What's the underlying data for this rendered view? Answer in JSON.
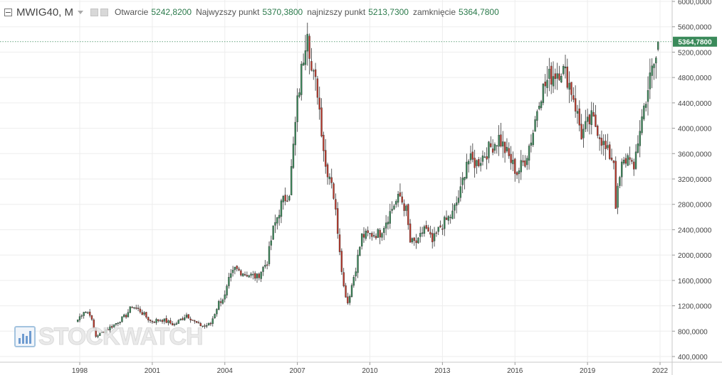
{
  "header": {
    "symbol": "MWIG40, M",
    "open_label": "Otwarcie",
    "open_value": "5242,8200",
    "high_label": "Najwyzszy punkt",
    "high_value": "5370,3800",
    "low_label": "najnizszy punkt",
    "low_value": "5213,7300",
    "close_label": "zamknięcie",
    "close_value": "5364,7800"
  },
  "watermark": "STOCKWATCH",
  "colors": {
    "up": "#3a8a5a",
    "down": "#c0392b",
    "wick": "#333333",
    "grid": "#ededed",
    "last_price": "#3a8a5a"
  },
  "chart_data": {
    "type": "candlestick",
    "interval": "monthly",
    "title": "",
    "xlabel": "",
    "ylabel": "",
    "x_ticks": [
      "1998",
      "2001",
      "2004",
      "2007",
      "2010",
      "2013",
      "2016",
      "2019",
      "2022"
    ],
    "y_ticks": [
      "400,0000",
      "800,0000",
      "1200,0000",
      "1600,0000",
      "2000,0000",
      "2400,0000",
      "2800,0000",
      "3200,0000",
      "3600,0000",
      "4000,0000",
      "4400,0000",
      "4800,0000",
      "5200,0000",
      "5600,0000",
      "6000,0000"
    ],
    "ylim": [
      400,
      6000
    ],
    "last_price": 5364.78,
    "last_price_label": "5364,7800",
    "grid": true,
    "anchors": [
      [
        "1997-12",
        980
      ],
      [
        "1998-03",
        1120
      ],
      [
        "1998-06",
        1080
      ],
      [
        "1998-09",
        720
      ],
      [
        "1998-12",
        780
      ],
      [
        "1999-06",
        900
      ],
      [
        "1999-12",
        1050
      ],
      [
        "2000-03",
        1200
      ],
      [
        "2000-07",
        1120
      ],
      [
        "2000-12",
        960
      ],
      [
        "2001-06",
        980
      ],
      [
        "2001-12",
        900
      ],
      [
        "2002-06",
        1060
      ],
      [
        "2002-12",
        900
      ],
      [
        "2003-03",
        880
      ],
      [
        "2003-06",
        920
      ],
      [
        "2003-10",
        1250
      ],
      [
        "2004-01",
        1350
      ],
      [
        "2004-03",
        1600
      ],
      [
        "2004-06",
        1780
      ],
      [
        "2004-12",
        1700
      ],
      [
        "2005-05",
        1650
      ],
      [
        "2005-10",
        1900
      ],
      [
        "2006-01",
        2400
      ],
      [
        "2006-05",
        2800
      ],
      [
        "2006-09",
        3000
      ],
      [
        "2007-01",
        4400
      ],
      [
        "2007-06",
        5650
      ],
      [
        "2007-08",
        4900
      ],
      [
        "2007-11",
        4600
      ],
      [
        "2008-03",
        3400
      ],
      [
        "2008-06",
        3200
      ],
      [
        "2008-09",
        2400
      ],
      [
        "2008-12",
        1500
      ],
      [
        "2009-02",
        1250
      ],
      [
        "2009-06",
        1800
      ],
      [
        "2009-09",
        2300
      ],
      [
        "2010-06",
        2350
      ],
      [
        "2011-01",
        2800
      ],
      [
        "2011-04",
        2920
      ],
      [
        "2011-07",
        2700
      ],
      [
        "2011-09",
        2200
      ],
      [
        "2012-01",
        2200
      ],
      [
        "2012-04",
        2450
      ],
      [
        "2012-08",
        2200
      ],
      [
        "2012-12",
        2450
      ],
      [
        "2013-06",
        2650
      ],
      [
        "2013-10",
        3000
      ],
      [
        "2014-01",
        3500
      ],
      [
        "2014-06",
        3450
      ],
      [
        "2015-05",
        3850
      ],
      [
        "2015-09",
        3600
      ],
      [
        "2016-02",
        3300
      ],
      [
        "2016-06",
        3500
      ],
      [
        "2016-10",
        3950
      ],
      [
        "2017-01",
        4500
      ],
      [
        "2017-06",
        4800
      ],
      [
        "2017-12",
        4950
      ],
      [
        "2018-03",
        4800
      ],
      [
        "2018-06",
        4500
      ],
      [
        "2018-10",
        3900
      ],
      [
        "2019-03",
        4150
      ],
      [
        "2019-06",
        4000
      ],
      [
        "2019-10",
        3650
      ],
      [
        "2020-02",
        3500
      ],
      [
        "2020-03",
        2800
      ],
      [
        "2020-06",
        3400
      ],
      [
        "2020-10",
        3600
      ],
      [
        "2020-12",
        3250
      ],
      [
        "2021-01",
        3600
      ],
      [
        "2021-03",
        4000
      ],
      [
        "2021-06",
        4500
      ],
      [
        "2021-09",
        4900
      ],
      [
        "2021-11",
        5100
      ],
      [
        "2021-12",
        5364.78
      ]
    ]
  }
}
